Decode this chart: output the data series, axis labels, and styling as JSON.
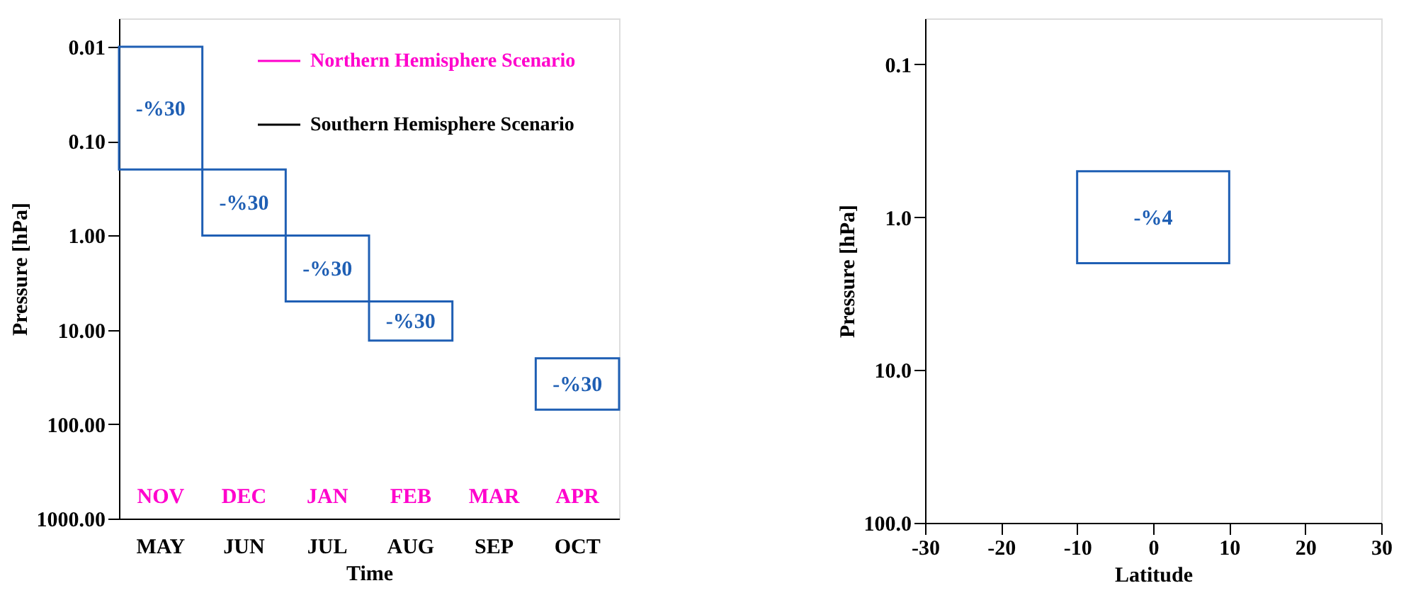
{
  "chart_data": [
    {
      "type": "bar",
      "xlabel": "Time",
      "ylabel": "Pressure [hPa]",
      "log": true,
      "legend": "top right",
      "grid": false,
      "categories": [
        "MAY",
        "JUN",
        "JUL",
        "AUG",
        "SEP",
        "OCT"
      ],
      "ylim": [
        1000,
        0.005
      ],
      "yticks": [
        {
          "value": 0.01,
          "label": "0.01"
        },
        {
          "value": 0.1,
          "label": "0.10"
        },
        {
          "value": 1,
          "label": "1.00"
        },
        {
          "value": 10,
          "label": "10.00"
        },
        {
          "value": 100,
          "label": "100.00"
        },
        {
          "value": 1000,
          "label": "1000.00"
        }
      ],
      "series": [
        {
          "type": "bar",
          "color": "#1f5fb4",
          "base": [
            0.01,
            0.2,
            1,
            5,
            null,
            20
          ],
          "values": [
            0.19,
            0.8,
            4,
            8,
            null,
            50
          ]
        },
        {
          "type": "line",
          "name": "Northern Hemisphere Scenario",
          "color": "#ff00cc",
          "values": [
            null,
            null,
            null,
            null,
            null,
            null
          ]
        },
        {
          "type": "line",
          "name": "Southern Hemisphere Scenario",
          "color": "#000000",
          "values": [
            null,
            null,
            null,
            null,
            null,
            null
          ]
        }
      ],
      "annotations": [
        "-%30",
        "-%30",
        "-%30",
        "-%30",
        "-%30",
        "NOV",
        "DEC",
        "JAN",
        "FEB",
        "MAR",
        "APR"
      ]
    },
    {
      "type": "bar",
      "xlabel": "Latitude",
      "ylabel": "Pressure [hPa]",
      "log": true,
      "grid": false,
      "x": [
        0
      ],
      "xerrors": [
        [
          -10,
          10
        ]
      ],
      "base": [
        0.5
      ],
      "values": [
        1.5
      ],
      "color": "#1f5fb4",
      "xlim": [
        -30,
        30
      ],
      "xticks": [
        -30,
        -20,
        -10,
        0,
        10,
        20,
        30
      ],
      "ylim": [
        100,
        0.05
      ],
      "yticks": [
        {
          "value": 0.1,
          "label": "0.1"
        },
        {
          "value": 1,
          "label": "1.0"
        },
        {
          "value": 10,
          "label": "10.0"
        },
        {
          "value": 100,
          "label": "100.0"
        }
      ],
      "annotations": [
        "-%4"
      ]
    }
  ]
}
